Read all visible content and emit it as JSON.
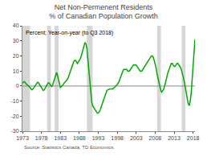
{
  "chart_data": {
    "type": "line",
    "title": "Net Non-Permenent Residents\n% of Canadian Population Growth",
    "subtitle": "Percent; Year-on-year (to Q3 2018)",
    "source": "Source: Statistics Canada, TD Economics.",
    "xlim": [
      1973,
      2018.5
    ],
    "ylim": [
      -30,
      40
    ],
    "yticks": [
      -30,
      -20,
      -10,
      0,
      10,
      20,
      30,
      40
    ],
    "xticks": [
      1973,
      1978,
      1983,
      1988,
      1993,
      1998,
      2003,
      2008,
      2013,
      2018
    ],
    "color": "#00aa00",
    "zero_line_color": "#888888",
    "shades": [
      [
        1973.0,
        1975.0
      ],
      [
        1979.5,
        1980.5
      ],
      [
        1981.5,
        1982.5
      ],
      [
        1990.0,
        1991.5
      ],
      [
        2008.5,
        2009.5
      ],
      [
        2015.0,
        2016.0
      ]
    ],
    "shade_color": "#cccccc",
    "grid": false,
    "x": [
      1973.0,
      1973.25,
      1973.5,
      1973.75,
      1974.0,
      1974.25,
      1974.5,
      1974.75,
      1975.0,
      1975.25,
      1975.5,
      1975.75,
      1976.0,
      1976.25,
      1976.5,
      1976.75,
      1977.0,
      1977.25,
      1977.5,
      1977.75,
      1978.0,
      1978.25,
      1978.5,
      1978.75,
      1979.0,
      1979.25,
      1979.5,
      1979.75,
      1980.0,
      1980.25,
      1980.5,
      1980.75,
      1981.0,
      1981.25,
      1981.5,
      1981.75,
      1982.0,
      1982.25,
      1982.5,
      1982.75,
      1983.0,
      1983.25,
      1983.5,
      1983.75,
      1984.0,
      1984.25,
      1984.5,
      1984.75,
      1985.0,
      1985.25,
      1985.5,
      1985.75,
      1986.0,
      1986.25,
      1986.5,
      1986.75,
      1987.0,
      1987.25,
      1987.5,
      1987.75,
      1988.0,
      1988.25,
      1988.5,
      1988.75,
      1989.0,
      1989.25,
      1989.5,
      1989.75,
      1990.0,
      1990.25,
      1990.5,
      1990.75,
      1991.0,
      1991.25,
      1991.5,
      1991.75,
      1992.0,
      1992.25,
      1992.5,
      1992.75,
      1993.0,
      1993.25,
      1993.5,
      1993.75,
      1994.0,
      1994.25,
      1994.5,
      1994.75,
      1995.0,
      1995.25,
      1995.5,
      1995.75,
      1996.0,
      1996.25,
      1996.5,
      1996.75,
      1997.0,
      1997.25,
      1997.5,
      1997.75,
      1998.0,
      1998.25,
      1998.5,
      1998.75,
      1999.0,
      1999.25,
      1999.5,
      1999.75,
      2000.0,
      2000.25,
      2000.5,
      2000.75,
      2001.0,
      2001.25,
      2001.5,
      2001.75,
      2002.0,
      2002.25,
      2002.5,
      2002.75,
      2003.0,
      2003.25,
      2003.5,
      2003.75,
      2004.0,
      2004.25,
      2004.5,
      2004.75,
      2005.0,
      2005.25,
      2005.5,
      2005.75,
      2006.0,
      2006.25,
      2006.5,
      2006.75,
      2007.0,
      2007.25,
      2007.5,
      2007.75,
      2008.0,
      2008.25,
      2008.5,
      2008.75,
      2009.0,
      2009.25,
      2009.5,
      2009.75,
      2010.0,
      2010.25,
      2010.5,
      2010.75,
      2011.0,
      2011.25,
      2011.5,
      2011.75,
      2012.0,
      2012.25,
      2012.5,
      2012.75,
      2013.0,
      2013.25,
      2013.5,
      2013.75,
      2014.0,
      2014.25,
      2014.5,
      2014.75,
      2015.0,
      2015.25,
      2015.5,
      2015.75,
      2016.0,
      2016.25,
      2016.5,
      2016.75,
      2017.0,
      2017.25,
      2017.5,
      2017.75,
      2018.0,
      2018.25,
      2018.5
    ],
    "values": [
      2.0,
      2.5,
      3.0,
      2.0,
      1.5,
      1.0,
      0.5,
      0.0,
      -1.0,
      -2.0,
      -2.5,
      -2.0,
      -1.0,
      0.0,
      1.0,
      2.0,
      2.5,
      2.0,
      1.0,
      0.0,
      -1.0,
      -2.0,
      -3.0,
      -2.5,
      -1.5,
      0.0,
      1.0,
      2.0,
      2.0,
      1.0,
      0.0,
      -0.5,
      1.0,
      3.0,
      5.0,
      8.0,
      9.0,
      7.0,
      4.0,
      1.0,
      -1.0,
      -0.5,
      0.0,
      1.0,
      2.0,
      2.5,
      3.0,
      4.0,
      5.0,
      7.0,
      9.0,
      11.0,
      13.0,
      15.0,
      16.0,
      17.0,
      17.0,
      16.0,
      15.0,
      16.0,
      17.0,
      18.0,
      20.0,
      22.0,
      25.0,
      27.0,
      29.0,
      28.0,
      25.0,
      18.0,
      10.0,
      2.0,
      -5.0,
      -10.0,
      -13.0,
      -14.0,
      -15.0,
      -16.0,
      -17.0,
      -18.0,
      -18.0,
      -17.0,
      -16.0,
      -14.0,
      -12.0,
      -10.0,
      -8.0,
      -6.0,
      -4.0,
      -3.0,
      -2.5,
      -2.0,
      -2.0,
      -2.0,
      -2.0,
      -2.0,
      -1.5,
      -1.0,
      -0.5,
      0.0,
      1.0,
      2.0,
      3.0,
      5.0,
      7.0,
      9.0,
      10.0,
      11.0,
      11.0,
      11.0,
      11.0,
      10.0,
      10.0,
      10.0,
      11.0,
      12.0,
      13.0,
      14.0,
      14.0,
      14.0,
      14.0,
      13.0,
      12.0,
      11.0,
      10.0,
      10.0,
      10.0,
      11.0,
      12.0,
      13.0,
      14.0,
      15.0,
      16.0,
      17.0,
      18.0,
      19.0,
      20.0,
      20.0,
      19.0,
      17.0,
      15.0,
      12.0,
      8.0,
      5.0,
      2.0,
      -1.0,
      -3.0,
      -4.0,
      -3.0,
      -2.0,
      0.0,
      2.0,
      5.0,
      8.0,
      10.0,
      12.0,
      14.0,
      15.0,
      15.0,
      14.0,
      13.0,
      13.0,
      14.0,
      15.0,
      15.0,
      14.0,
      13.0,
      12.0,
      10.0,
      8.0,
      5.0,
      2.0,
      -1.0,
      -5.0,
      -9.0,
      -12.0,
      -13.0,
      -10.0,
      -5.0,
      5.0,
      15.0,
      25.0,
      31.0
    ]
  }
}
